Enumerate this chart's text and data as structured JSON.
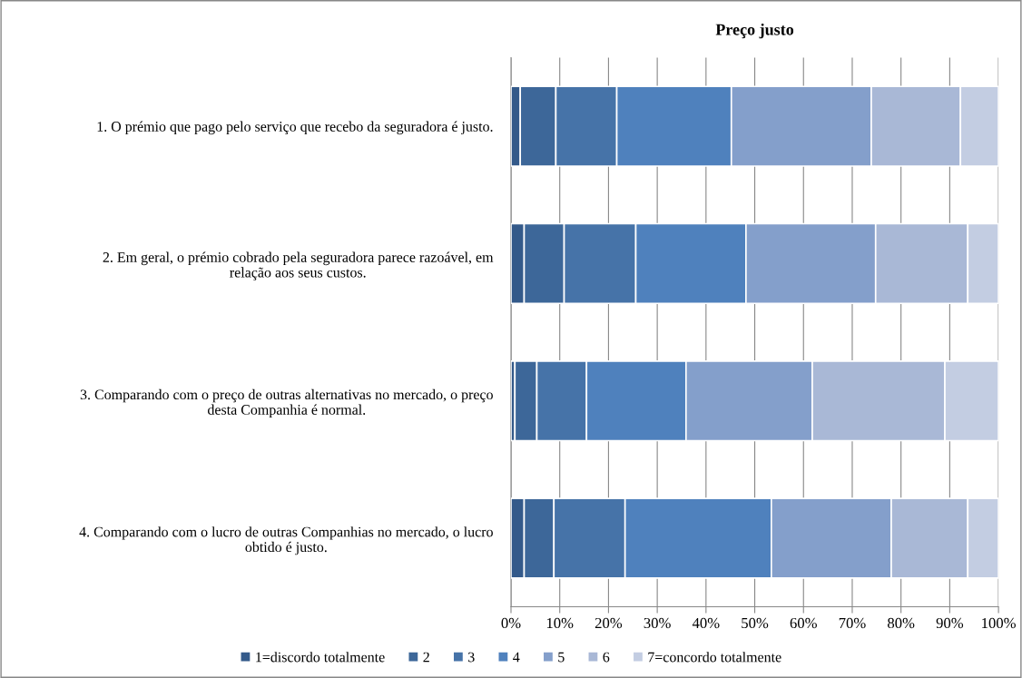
{
  "chart_data": {
    "type": "bar",
    "orientation": "horizontal",
    "stacked": true,
    "title": "Preço justo",
    "categories": [
      "1. O prémio que pago pelo serviço que recebo da seguradora é justo.",
      "2. Em geral, o prémio cobrado pela seguradora parece razoável, em\nrelação aos seus custos.",
      "3. Comparando com o preço de outras alternativas no mercado, o preço\ndesta Companhia é normal.",
      "4. Comparando com o lucro de outras Companhias no mercado, o lucro\nobtido é justo."
    ],
    "series": [
      {
        "name": "1=discordo totalmente",
        "color": "#345a8a",
        "values": [
          1.9,
          2.7,
          0.8,
          2.7
        ]
      },
      {
        "name": "2",
        "color": "#3d6799",
        "values": [
          7.3,
          8.2,
          4.5,
          6.1
        ]
      },
      {
        "name": "3",
        "color": "#4673a8",
        "values": [
          12.5,
          14.7,
          10.2,
          14.6
        ]
      },
      {
        "name": "4",
        "color": "#4f81bd",
        "values": [
          23.5,
          22.6,
          20.4,
          30.0
        ]
      },
      {
        "name": "5",
        "color": "#849fcb",
        "values": [
          28.7,
          26.6,
          25.9,
          24.6
        ]
      },
      {
        "name": "6",
        "color": "#a9b8d6",
        "values": [
          18.3,
          18.9,
          27.2,
          15.7
        ]
      },
      {
        "name": "7=concordo totalmente",
        "color": "#c3cde2",
        "values": [
          7.8,
          6.3,
          11.0,
          6.3
        ]
      }
    ],
    "xlim": [
      0,
      100
    ],
    "xticks": [
      {
        "value": 0,
        "label": "0%"
      },
      {
        "value": 10,
        "label": "10%"
      },
      {
        "value": 20,
        "label": "20%"
      },
      {
        "value": 30,
        "label": "30%"
      },
      {
        "value": 40,
        "label": "40%"
      },
      {
        "value": 50,
        "label": "50%"
      },
      {
        "value": 60,
        "label": "60%"
      },
      {
        "value": 70,
        "label": "70%"
      },
      {
        "value": 80,
        "label": "80%"
      },
      {
        "value": 90,
        "label": "90%"
      },
      {
        "value": 100,
        "label": "100%"
      }
    ],
    "grid": "x",
    "legend": "bottom"
  }
}
